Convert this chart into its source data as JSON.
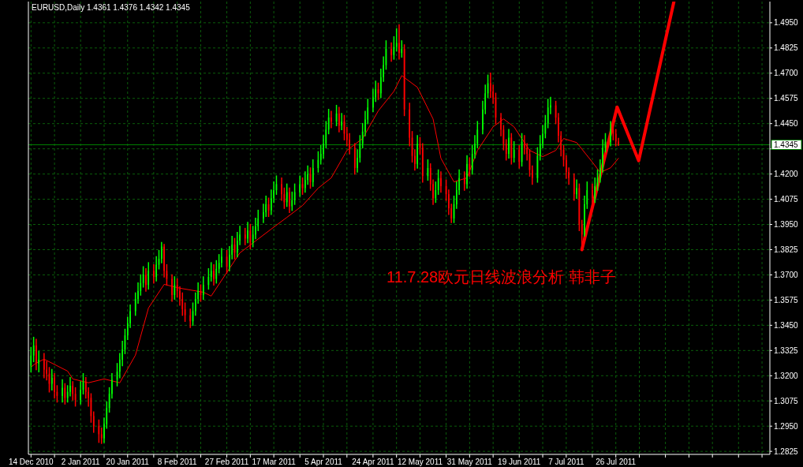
{
  "chart_data": {
    "type": "candlestick",
    "title": "EURUSD,Daily  1.4361 1.4376 1.4342 1.4345",
    "annotations": [
      "11.7.28欧元日线波浪分析 韩非子"
    ],
    "x": [
      "2010-12-14",
      "2010-12-15",
      "2010-12-16",
      "2010-12-17",
      "2010-12-19",
      "2010-12-20",
      "2010-12-21",
      "2010-12-22",
      "2010-12-23",
      "2010-12-24",
      "2010-12-26",
      "2010-12-27",
      "2010-12-28",
      "2010-12-29",
      "2010-12-30",
      "2010-12-31",
      "2011-01-02",
      "2011-01-03",
      "2011-01-04",
      "2011-01-05",
      "2011-01-06",
      "2011-01-07",
      "2011-01-09",
      "2011-01-10",
      "2011-01-11",
      "2011-01-12",
      "2011-01-13",
      "2011-01-14",
      "2011-01-16",
      "2011-01-17",
      "2011-01-18",
      "2011-01-19",
      "2011-01-20",
      "2011-01-21",
      "2011-01-23",
      "2011-01-24",
      "2011-01-25",
      "2011-01-26",
      "2011-01-27",
      "2011-01-28",
      "2011-01-30",
      "2011-01-31",
      "2011-02-01",
      "2011-02-02",
      "2011-02-03",
      "2011-02-04",
      "2011-02-06",
      "2011-02-07",
      "2011-02-08",
      "2011-02-09",
      "2011-02-10",
      "2011-02-11",
      "2011-02-13",
      "2011-02-14",
      "2011-02-15",
      "2011-02-16",
      "2011-02-17",
      "2011-02-18",
      "2011-02-20",
      "2011-02-21",
      "2011-02-22",
      "2011-02-23",
      "2011-02-24",
      "2011-02-25",
      "2011-02-27",
      "2011-02-28",
      "2011-03-01",
      "2011-03-02",
      "2011-03-03",
      "2011-03-04",
      "2011-03-06",
      "2011-03-07",
      "2011-03-08",
      "2011-03-09",
      "2011-03-10",
      "2011-03-11",
      "2011-03-13",
      "2011-03-14",
      "2011-03-15",
      "2011-03-16",
      "2011-03-17",
      "2011-03-18",
      "2011-03-20",
      "2011-03-21",
      "2011-03-22",
      "2011-03-23",
      "2011-03-24",
      "2011-03-25",
      "2011-03-27",
      "2011-03-28",
      "2011-03-29",
      "2011-03-30",
      "2011-03-31",
      "2011-04-01",
      "2011-04-03",
      "2011-04-04",
      "2011-04-05",
      "2011-04-06",
      "2011-04-07",
      "2011-04-08",
      "2011-04-10",
      "2011-04-11",
      "2011-04-12",
      "2011-04-13",
      "2011-04-14",
      "2011-04-15",
      "2011-04-17",
      "2011-04-18",
      "2011-04-19",
      "2011-04-20",
      "2011-04-21",
      "2011-04-22",
      "2011-04-24",
      "2011-04-25",
      "2011-04-26",
      "2011-04-27",
      "2011-04-28",
      "2011-04-29",
      "2011-05-01",
      "2011-05-02",
      "2011-05-03",
      "2011-05-04",
      "2011-05-05",
      "2011-05-06",
      "2011-05-08",
      "2011-05-09",
      "2011-05-10",
      "2011-05-11",
      "2011-05-12",
      "2011-05-13",
      "2011-05-15",
      "2011-05-16",
      "2011-05-17",
      "2011-05-18",
      "2011-05-19",
      "2011-05-20",
      "2011-05-22",
      "2011-05-23",
      "2011-05-24",
      "2011-05-25",
      "2011-05-26",
      "2011-05-27",
      "2011-05-29",
      "2011-05-30",
      "2011-05-31",
      "2011-06-01",
      "2011-06-02",
      "2011-06-03",
      "2011-06-05",
      "2011-06-06",
      "2011-06-07",
      "2011-06-08",
      "2011-06-09",
      "2011-06-10",
      "2011-06-12",
      "2011-06-13",
      "2011-06-14",
      "2011-06-15",
      "2011-06-16",
      "2011-06-17",
      "2011-06-19",
      "2011-06-20",
      "2011-06-21",
      "2011-06-22",
      "2011-06-23",
      "2011-06-24",
      "2011-06-26",
      "2011-06-27",
      "2011-06-28",
      "2011-06-29",
      "2011-06-30",
      "2011-07-01",
      "2011-07-03",
      "2011-07-04",
      "2011-07-05",
      "2011-07-06",
      "2011-07-07",
      "2011-07-08",
      "2011-07-10",
      "2011-07-11",
      "2011-07-12",
      "2011-07-13",
      "2011-07-14",
      "2011-07-15",
      "2011-07-17",
      "2011-07-18",
      "2011-07-19",
      "2011-07-20",
      "2011-07-21",
      "2011-07-22",
      "2011-07-24",
      "2011-07-25",
      "2011-07-26",
      "2011-07-27"
    ],
    "ohlc": [
      [
        1.325,
        1.334,
        1.322,
        1.33
      ],
      [
        1.33,
        1.339,
        1.327,
        1.335
      ],
      [
        1.335,
        1.338,
        1.323,
        1.326
      ],
      [
        1.326,
        1.332,
        1.322,
        1.328
      ],
      [
        1.328,
        1.331,
        1.319,
        1.323
      ],
      [
        1.323,
        1.327,
        1.318,
        1.321
      ],
      [
        1.321,
        1.324,
        1.312,
        1.316
      ],
      [
        1.316,
        1.323,
        1.313,
        1.319
      ],
      [
        1.319,
        1.321,
        1.309,
        1.312
      ],
      [
        1.312,
        1.315,
        1.307,
        1.31
      ],
      [
        1.31,
        1.318,
        1.307,
        1.314
      ],
      [
        1.314,
        1.316,
        1.306,
        1.309
      ],
      [
        1.309,
        1.315,
        1.307,
        1.312
      ],
      [
        1.312,
        1.319,
        1.31,
        1.315
      ],
      [
        1.315,
        1.317,
        1.308,
        1.311
      ],
      [
        1.311,
        1.314,
        1.305,
        1.308
      ],
      [
        1.308,
        1.317,
        1.306,
        1.313
      ],
      [
        1.313,
        1.321,
        1.311,
        1.317
      ],
      [
        1.317,
        1.319,
        1.309,
        1.312
      ],
      [
        1.312,
        1.314,
        1.305,
        1.309
      ],
      [
        1.309,
        1.311,
        1.297,
        1.3
      ],
      [
        1.3,
        1.302,
        1.292,
        1.295
      ],
      [
        1.295,
        1.298,
        1.287,
        1.291
      ],
      [
        1.291,
        1.294,
        1.2865,
        1.289
      ],
      [
        1.289,
        1.299,
        1.287,
        1.296
      ],
      [
        1.296,
        1.307,
        1.294,
        1.304
      ],
      [
        1.304,
        1.314,
        1.302,
        1.311
      ],
      [
        1.311,
        1.321,
        1.309,
        1.318
      ],
      [
        1.318,
        1.326,
        1.315,
        1.322
      ],
      [
        1.322,
        1.331,
        1.319,
        1.328
      ],
      [
        1.328,
        1.337,
        1.325,
        1.333
      ],
      [
        1.333,
        1.343,
        1.331,
        1.34
      ],
      [
        1.34,
        1.349,
        1.338,
        1.346
      ],
      [
        1.346,
        1.355,
        1.344,
        1.352
      ],
      [
        1.352,
        1.361,
        1.35,
        1.358
      ],
      [
        1.358,
        1.366,
        1.356,
        1.362
      ],
      [
        1.362,
        1.37,
        1.36,
        1.366
      ],
      [
        1.366,
        1.374,
        1.364,
        1.37
      ],
      [
        1.37,
        1.373,
        1.362,
        1.365
      ],
      [
        1.365,
        1.376,
        1.363,
        1.372
      ],
      [
        1.372,
        1.375,
        1.366,
        1.369
      ],
      [
        1.369,
        1.379,
        1.367,
        1.375
      ],
      [
        1.375,
        1.382,
        1.373,
        1.378
      ],
      [
        1.378,
        1.386,
        1.376,
        1.384
      ],
      [
        1.384,
        1.385,
        1.369,
        1.372
      ],
      [
        1.372,
        1.375,
        1.365,
        1.368
      ],
      [
        1.368,
        1.37,
        1.357,
        1.36
      ],
      [
        1.36,
        1.369,
        1.358,
        1.365
      ],
      [
        1.365,
        1.368,
        1.359,
        1.362
      ],
      [
        1.362,
        1.364,
        1.355,
        1.358
      ],
      [
        1.358,
        1.361,
        1.35,
        1.353
      ],
      [
        1.353,
        1.356,
        1.347,
        1.35
      ],
      [
        1.35,
        1.353,
        1.344,
        1.347
      ],
      [
        1.347,
        1.356,
        1.345,
        1.352
      ],
      [
        1.352,
        1.361,
        1.35,
        1.358
      ],
      [
        1.358,
        1.366,
        1.356,
        1.362
      ],
      [
        1.362,
        1.365,
        1.357,
        1.36
      ],
      [
        1.36,
        1.369,
        1.358,
        1.365
      ],
      [
        1.365,
        1.373,
        1.363,
        1.369
      ],
      [
        1.369,
        1.376,
        1.367,
        1.372
      ],
      [
        1.372,
        1.375,
        1.365,
        1.368
      ],
      [
        1.368,
        1.377,
        1.366,
        1.373
      ],
      [
        1.373,
        1.38,
        1.371,
        1.376
      ],
      [
        1.376,
        1.383,
        1.374,
        1.379
      ],
      [
        1.379,
        1.382,
        1.371,
        1.374
      ],
      [
        1.374,
        1.384,
        1.372,
        1.38
      ],
      [
        1.38,
        1.389,
        1.378,
        1.385
      ],
      [
        1.385,
        1.388,
        1.378,
        1.381
      ],
      [
        1.381,
        1.391,
        1.379,
        1.387
      ],
      [
        1.387,
        1.394,
        1.385,
        1.39
      ],
      [
        1.39,
        1.393,
        1.385,
        1.388
      ],
      [
        1.388,
        1.396,
        1.386,
        1.392
      ],
      [
        1.392,
        1.395,
        1.383,
        1.386
      ],
      [
        1.386,
        1.394,
        1.384,
        1.39
      ],
      [
        1.39,
        1.398,
        1.388,
        1.394
      ],
      [
        1.394,
        1.402,
        1.392,
        1.398
      ],
      [
        1.398,
        1.405,
        1.396,
        1.401
      ],
      [
        1.401,
        1.409,
        1.399,
        1.405
      ],
      [
        1.405,
        1.408,
        1.399,
        1.402
      ],
      [
        1.402,
        1.412,
        1.4,
        1.408
      ],
      [
        1.408,
        1.416,
        1.406,
        1.412
      ],
      [
        1.412,
        1.419,
        1.41,
        1.415
      ],
      [
        1.415,
        1.418,
        1.407,
        1.41
      ],
      [
        1.41,
        1.413,
        1.403,
        1.406
      ],
      [
        1.406,
        1.415,
        1.404,
        1.411
      ],
      [
        1.411,
        1.413,
        1.401,
        1.404
      ],
      [
        1.404,
        1.411,
        1.402,
        1.407
      ],
      [
        1.407,
        1.415,
        1.405,
        1.411
      ],
      [
        1.411,
        1.419,
        1.409,
        1.415
      ],
      [
        1.415,
        1.418,
        1.41,
        1.413
      ],
      [
        1.413,
        1.421,
        1.411,
        1.417
      ],
      [
        1.417,
        1.424,
        1.415,
        1.42
      ],
      [
        1.42,
        1.423,
        1.413,
        1.416
      ],
      [
        1.416,
        1.427,
        1.414,
        1.423
      ],
      [
        1.423,
        1.431,
        1.421,
        1.427
      ],
      [
        1.427,
        1.434,
        1.425,
        1.43
      ],
      [
        1.43,
        1.439,
        1.428,
        1.435
      ],
      [
        1.435,
        1.446,
        1.433,
        1.442
      ],
      [
        1.442,
        1.452,
        1.44,
        1.448
      ],
      [
        1.448,
        1.451,
        1.443,
        1.446
      ],
      [
        1.446,
        1.454,
        1.444,
        1.45
      ],
      [
        1.45,
        1.453,
        1.441,
        1.444
      ],
      [
        1.444,
        1.45,
        1.442,
        1.446
      ],
      [
        1.446,
        1.449,
        1.437,
        1.44
      ],
      [
        1.44,
        1.443,
        1.434,
        1.437
      ],
      [
        1.437,
        1.44,
        1.43,
        1.433
      ],
      [
        1.433,
        1.435,
        1.42,
        1.423
      ],
      [
        1.423,
        1.432,
        1.421,
        1.428
      ],
      [
        1.428,
        1.439,
        1.426,
        1.435
      ],
      [
        1.435,
        1.445,
        1.433,
        1.441
      ],
      [
        1.441,
        1.451,
        1.439,
        1.447
      ],
      [
        1.447,
        1.457,
        1.445,
        1.453
      ],
      [
        1.453,
        1.462,
        1.451,
        1.458
      ],
      [
        1.458,
        1.466,
        1.456,
        1.462
      ],
      [
        1.462,
        1.465,
        1.457,
        1.46
      ],
      [
        1.46,
        1.472,
        1.458,
        1.468
      ],
      [
        1.468,
        1.478,
        1.466,
        1.474
      ],
      [
        1.474,
        1.486,
        1.472,
        1.482
      ],
      [
        1.482,
        1.485,
        1.476,
        1.479
      ],
      [
        1.479,
        1.488,
        1.477,
        1.483
      ],
      [
        1.483,
        1.492,
        1.481,
        1.485
      ],
      [
        1.485,
        1.494,
        1.477,
        1.48
      ],
      [
        1.48,
        1.486,
        1.478,
        1.482
      ],
      [
        1.482,
        1.484,
        1.449,
        1.452
      ],
      [
        1.452,
        1.455,
        1.434,
        1.438
      ],
      [
        1.438,
        1.441,
        1.426,
        1.429
      ],
      [
        1.429,
        1.432,
        1.422,
        1.425
      ],
      [
        1.425,
        1.439,
        1.423,
        1.435
      ],
      [
        1.435,
        1.438,
        1.43,
        1.433
      ],
      [
        1.433,
        1.435,
        1.416,
        1.419
      ],
      [
        1.419,
        1.427,
        1.417,
        1.423
      ],
      [
        1.423,
        1.425,
        1.412,
        1.415
      ],
      [
        1.415,
        1.417,
        1.405,
        1.408
      ],
      [
        1.408,
        1.416,
        1.406,
        1.412
      ],
      [
        1.412,
        1.422,
        1.41,
        1.418
      ],
      [
        1.418,
        1.421,
        1.411,
        1.414
      ],
      [
        1.414,
        1.417,
        1.407,
        1.41
      ],
      [
        1.41,
        1.412,
        1.4,
        1.403
      ],
      [
        1.403,
        1.405,
        1.396,
        1.398
      ],
      [
        1.398,
        1.409,
        1.396,
        1.405
      ],
      [
        1.405,
        1.416,
        1.403,
        1.412
      ],
      [
        1.412,
        1.422,
        1.41,
        1.418
      ],
      [
        1.418,
        1.421,
        1.412,
        1.415
      ],
      [
        1.415,
        1.429,
        1.413,
        1.425
      ],
      [
        1.425,
        1.428,
        1.419,
        1.422
      ],
      [
        1.422,
        1.434,
        1.42,
        1.43
      ],
      [
        1.43,
        1.439,
        1.428,
        1.435
      ],
      [
        1.435,
        1.446,
        1.433,
        1.442
      ],
      [
        1.442,
        1.456,
        1.44,
        1.452
      ],
      [
        1.452,
        1.464,
        1.45,
        1.46
      ],
      [
        1.46,
        1.469,
        1.458,
        1.465
      ],
      [
        1.465,
        1.47,
        1.458,
        1.461
      ],
      [
        1.461,
        1.464,
        1.455,
        1.458
      ],
      [
        1.458,
        1.46,
        1.445,
        1.448
      ],
      [
        1.448,
        1.45,
        1.439,
        1.442
      ],
      [
        1.442,
        1.444,
        1.432,
        1.435
      ],
      [
        1.435,
        1.437,
        1.427,
        1.43
      ],
      [
        1.43,
        1.442,
        1.428,
        1.438
      ],
      [
        1.438,
        1.44,
        1.425,
        1.428
      ],
      [
        1.428,
        1.436,
        1.426,
        1.432
      ],
      [
        1.432,
        1.434,
        1.423,
        1.426
      ],
      [
        1.426,
        1.44,
        1.424,
        1.436
      ],
      [
        1.436,
        1.439,
        1.43,
        1.433
      ],
      [
        1.433,
        1.435,
        1.427,
        1.43
      ],
      [
        1.43,
        1.432,
        1.419,
        1.422
      ],
      [
        1.422,
        1.424,
        1.415,
        1.418
      ],
      [
        1.418,
        1.433,
        1.416,
        1.429
      ],
      [
        1.429,
        1.439,
        1.427,
        1.435
      ],
      [
        1.435,
        1.444,
        1.433,
        1.44
      ],
      [
        1.44,
        1.449,
        1.438,
        1.445
      ],
      [
        1.445,
        1.457,
        1.443,
        1.453
      ],
      [
        1.453,
        1.458,
        1.45,
        1.454
      ],
      [
        1.454,
        1.456,
        1.445,
        1.448
      ],
      [
        1.448,
        1.45,
        1.436,
        1.439
      ],
      [
        1.439,
        1.441,
        1.429,
        1.432
      ],
      [
        1.432,
        1.434,
        1.424,
        1.427
      ],
      [
        1.427,
        1.429,
        1.418,
        1.421
      ],
      [
        1.421,
        1.423,
        1.415,
        1.418
      ],
      [
        1.418,
        1.42,
        1.407,
        1.41
      ],
      [
        1.41,
        1.417,
        1.408,
        1.413
      ],
      [
        1.413,
        1.415,
        1.392,
        1.395
      ],
      [
        1.395,
        1.397,
        1.3837,
        1.39
      ],
      [
        1.39,
        1.409,
        1.3893,
        1.405
      ],
      [
        1.405,
        1.416,
        1.403,
        1.412
      ],
      [
        1.412,
        1.415,
        1.405,
        1.408
      ],
      [
        1.408,
        1.418,
        1.406,
        1.414
      ],
      [
        1.414,
        1.422,
        1.412,
        1.418
      ],
      [
        1.418,
        1.427,
        1.416,
        1.423
      ],
      [
        1.423,
        1.437,
        1.421,
        1.433
      ],
      [
        1.433,
        1.44,
        1.431,
        1.436
      ],
      [
        1.436,
        1.446,
        1.434,
        1.442
      ],
      [
        1.442,
        1.445,
        1.437,
        1.44
      ],
      [
        1.44,
        1.442,
        1.434,
        1.4361
      ],
      [
        1.4361,
        1.4376,
        1.4342,
        1.4345
      ]
    ],
    "series": [
      {
        "type": "line",
        "color": "#ff0000",
        "x": [
          "2010-12-14",
          "2010-12-16",
          "2010-12-19",
          "2010-12-28",
          "2010-12-30",
          "2011-01-05",
          "2011-01-11",
          "2011-01-17",
          "2011-01-23",
          "2011-01-28",
          "2011-02-03",
          "2011-02-09",
          "2011-02-18",
          "2011-02-21",
          "2011-02-27",
          "2011-03-04",
          "2011-03-10",
          "2011-03-16",
          "2011-03-22",
          "2011-03-28",
          "2011-04-03",
          "2011-04-08",
          "2011-04-14",
          "2011-04-20",
          "2011-04-26",
          "2011-05-02",
          "2011-05-05",
          "2011-05-11",
          "2011-05-17",
          "2011-05-20",
          "2011-05-25",
          "2011-05-30",
          "2011-06-03",
          "2011-06-09",
          "2011-06-13",
          "2011-06-17",
          "2011-06-23",
          "2011-06-28",
          "2011-07-03",
          "2011-07-06",
          "2011-07-11",
          "2011-07-17",
          "2011-07-20",
          "2011-07-24",
          "2011-07-27"
        ],
        "values": [
          1.3243,
          1.3263,
          1.3282,
          1.3223,
          1.3184,
          1.3165,
          1.3184,
          1.3165,
          1.3302,
          1.3536,
          1.3653,
          1.3634,
          1.3614,
          1.3595,
          1.3712,
          1.3809,
          1.3868,
          1.3927,
          1.3985,
          1.4044,
          1.413,
          1.4181,
          1.4317,
          1.4376,
          1.4513,
          1.461,
          1.4688,
          1.463,
          1.4473,
          1.4278,
          1.4161,
          1.4181,
          1.4317,
          1.4434,
          1.4473,
          1.4434,
          1.4317,
          1.4286,
          1.4317,
          1.4376,
          1.4356,
          1.4259,
          1.4208,
          1.4231,
          1.4278
        ]
      },
      {
        "type": "line",
        "color": "#ff0000",
        "x": [
          "2011-07-13",
          "2011-07-26T12:00",
          "2011-08-03T18:00",
          "2011-08-17T06:00"
        ],
        "values": [
          1.3825,
          1.4532,
          1.4266,
          1.5055
        ]
      }
    ],
    "xlim": [
      "2010-12-13",
      "2011-09-23"
    ],
    "ylim": [
      1.281,
      1.5055
    ],
    "xticks": [
      {
        "value": "2010-12-14",
        "label": "14 Dec 2010"
      },
      {
        "value": "2010-12-23",
        "label": null
      },
      {
        "value": "2011-01-02",
        "label": "2 Jan 2011"
      },
      {
        "value": "2011-01-11",
        "label": null
      },
      {
        "value": "2011-01-20",
        "label": "20 Jan 2011"
      },
      {
        "value": "2011-01-30",
        "label": null
      },
      {
        "value": "2011-02-08",
        "label": "8 Feb 2011"
      },
      {
        "value": "2011-02-17",
        "label": null
      },
      {
        "value": "2011-02-27",
        "label": "27 Feb 2011"
      },
      {
        "value": "2011-03-08",
        "label": null
      },
      {
        "value": "2011-03-17",
        "label": "17 Mar 2011"
      },
      {
        "value": "2011-03-27",
        "label": null
      },
      {
        "value": "2011-04-05",
        "label": "5 Apr 2011"
      },
      {
        "value": "2011-04-14",
        "label": null
      },
      {
        "value": "2011-04-24",
        "label": "24 Apr 2011"
      },
      {
        "value": "2011-05-03",
        "label": null
      },
      {
        "value": "2011-05-12",
        "label": "12 May 2011"
      },
      {
        "value": "2011-05-22",
        "label": null
      },
      {
        "value": "2011-05-31",
        "label": "31 May 2011"
      },
      {
        "value": "2011-06-09",
        "label": null
      },
      {
        "value": "2011-06-19",
        "label": "19 Jun 2011"
      },
      {
        "value": "2011-06-28",
        "label": null
      },
      {
        "value": "2011-07-07",
        "label": "7 Jul 2011"
      },
      {
        "value": "2011-07-17",
        "label": null
      },
      {
        "value": "2011-07-26",
        "label": "26 Jul 2011"
      },
      {
        "value": "2011-08-04",
        "label": null
      },
      {
        "value": "2011-08-14",
        "label": null
      },
      {
        "value": "2011-08-23",
        "label": null
      },
      {
        "value": "2011-09-01",
        "label": null
      },
      {
        "value": "2011-09-11",
        "label": null
      },
      {
        "value": "2011-09-20",
        "label": null
      }
    ],
    "yticks": [
      1.2825,
      {
        "value": 1.295,
        "label": "1.2950"
      },
      1.3075,
      {
        "value": 1.32,
        "label": "1.3200"
      },
      1.3325,
      {
        "value": 1.345,
        "label": "1.3450"
      },
      1.3575,
      {
        "value": 1.37,
        "label": "1.3700"
      },
      1.3825,
      {
        "value": 1.395,
        "label": "1.3950"
      },
      1.4075,
      {
        "value": 1.42,
        "label": "1.4200"
      },
      {
        "value": 1.4325,
        "label": null
      },
      {
        "value": 1.445,
        "label": "1.4450"
      },
      1.4575,
      {
        "value": 1.47,
        "label": "1.4700"
      },
      1.4825,
      {
        "value": 1.495,
        "label": "1.4950"
      }
    ],
    "ref_lines": [
      {
        "axis": "y",
        "value": 1.4345,
        "label": "1.4345",
        "color": "#008000"
      }
    ],
    "grid": true
  }
}
